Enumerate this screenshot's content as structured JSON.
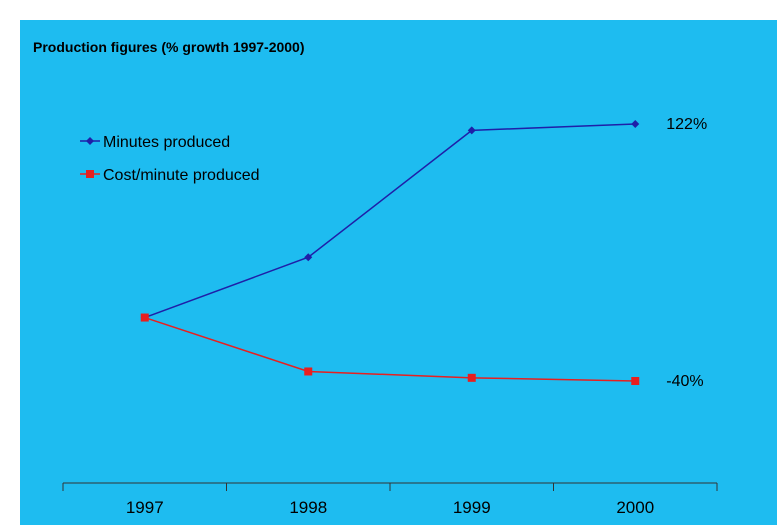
{
  "title": "Production figures (% growth 1997-2000)",
  "colors": {
    "background": "#1ebcf0",
    "minutes": "#1f1fa8",
    "cost": "#e81f1f"
  },
  "chart_data": {
    "type": "line",
    "title": "Production figures (% growth 1997-2000)",
    "xlabel": "",
    "ylabel": "",
    "categories": [
      "1997",
      "1998",
      "1999",
      "2000"
    ],
    "series": [
      {
        "name": "Minutes produced",
        "values": [
          0,
          38,
          118,
          122
        ],
        "end_label": "122%",
        "marker": "diamond",
        "color": "#1f1fa8"
      },
      {
        "name": "Cost/minute produced",
        "values": [
          0,
          -34,
          -38,
          -40
        ],
        "end_label": "-40%",
        "marker": "square",
        "color": "#e81f1f"
      }
    ],
    "ylim": [
      -90,
      140
    ],
    "grid": false,
    "y_axis_visible": false,
    "legend": "top-left"
  }
}
